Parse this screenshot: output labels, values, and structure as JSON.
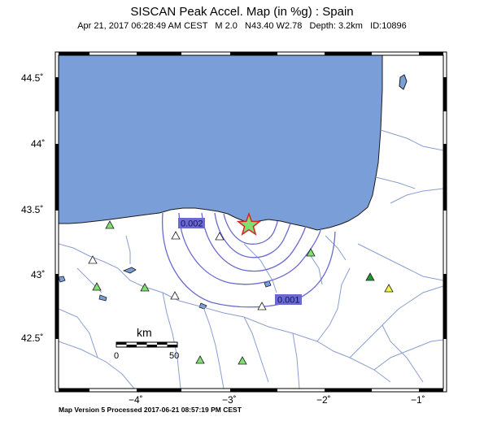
{
  "header": {
    "title": "SISCAN Peak Accel. Map (in %g) : Spain",
    "subtitle": "Apr 21, 2017 06:28:49 AM CEST   M 2.0   N43.40 W2.78   Depth: 3.2km   ID:10896"
  },
  "footer": "Map Version 5 Processed 2017-06-21 08:57:19 PM CEST",
  "axes": {
    "lat_ticks": [
      "44.5˚",
      "44˚",
      "43.5˚",
      "43˚",
      "42.5˚"
    ],
    "lon_ticks": [
      "−4˚",
      "−3˚",
      "−2˚",
      "−1˚"
    ]
  },
  "contours": [
    {
      "label": "0.002"
    },
    {
      "label": "0.001"
    }
  ],
  "scale_bar": {
    "unit": "km",
    "min": "0",
    "max": "50"
  },
  "colors": {
    "sea": "#7a9fd8",
    "contour": "#6a6ad0",
    "rivers": "#8a9ecf",
    "station_green": "#7ee06e",
    "station_white": "#ffffff",
    "station_yellow": "#f5f542",
    "station_darkgreen": "#1c9a2c",
    "epicenter": "#e02020"
  }
}
